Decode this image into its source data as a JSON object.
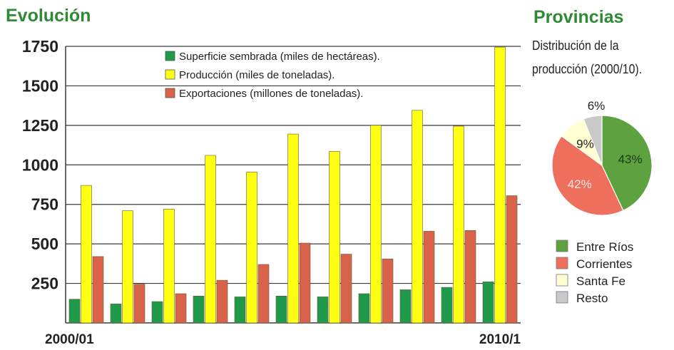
{
  "chart_data": [
    {
      "type": "bar",
      "title": "Evolución",
      "categories": [
        "2000/01",
        "",
        "",
        "",
        "",
        "",
        "",
        "",
        "",
        "",
        "2010/1"
      ],
      "yticks": [
        250,
        500,
        750,
        1000,
        1250,
        1500,
        1750
      ],
      "ylim": [
        0,
        1750
      ],
      "grid": true,
      "legend_position": "top-center",
      "series": [
        {
          "name": "Superficie  sembrada (miles de hectáreas).",
          "color": "#1f9a4b",
          "values": [
            150,
            120,
            135,
            170,
            165,
            170,
            165,
            185,
            210,
            225,
            260
          ]
        },
        {
          "name": "Producción (miles de toneladas).",
          "color": "#ffff14",
          "values": [
            870,
            710,
            720,
            1060,
            955,
            1195,
            1085,
            1250,
            1345,
            1245,
            1745
          ]
        },
        {
          "name": "Exportaciones (millones de toneladas).",
          "color": "#d9634a",
          "values": [
            420,
            245,
            185,
            270,
            370,
            505,
            435,
            405,
            580,
            585,
            805
          ]
        }
      ]
    },
    {
      "type": "pie",
      "title": "Provincias",
      "subtitle": "Distribución de la producción (2000/10).",
      "slices": [
        {
          "label": "Entre Ríos",
          "value": 43,
          "text": "43%",
          "color": "#5ea13f",
          "label_color": "#1c3a14"
        },
        {
          "label": "Corrientes",
          "value": 42,
          "text": "42%",
          "color": "#ef6f5d",
          "label_color": "#fbe9e2"
        },
        {
          "label": "Santa Fe",
          "value": 9,
          "text": "9%",
          "color": "#ffffd2",
          "label_color": "#222222"
        },
        {
          "label": "Resto",
          "value": 6,
          "text": "6%",
          "color": "#c9c9c9",
          "label_color": "#222222"
        }
      ]
    }
  ]
}
